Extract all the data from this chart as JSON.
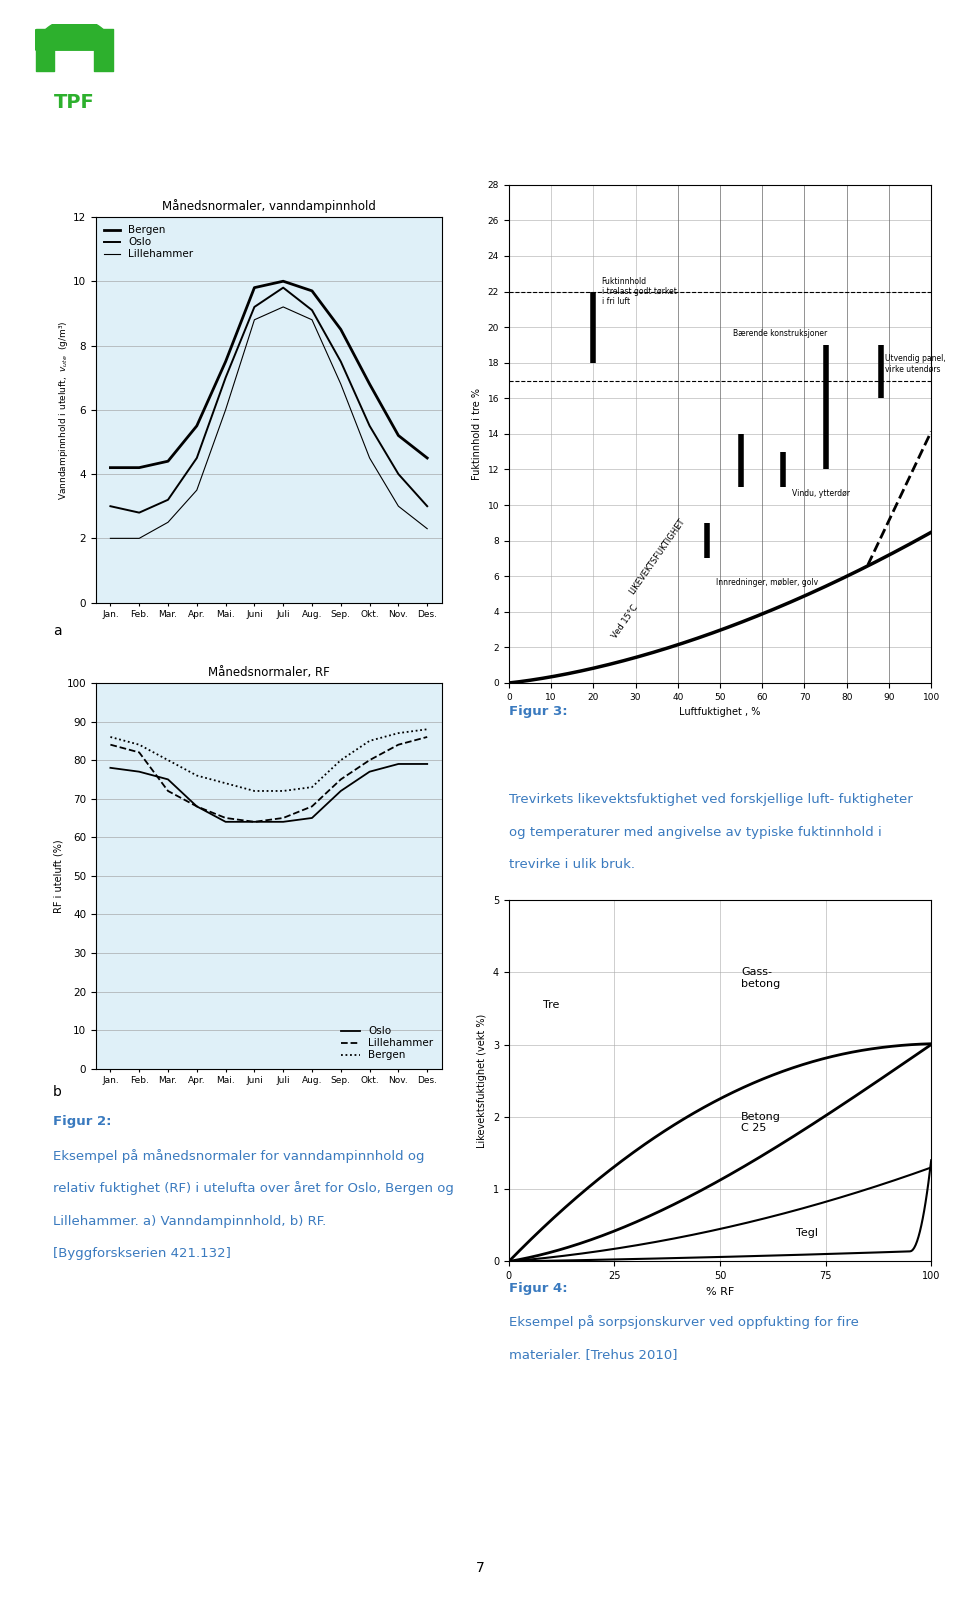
{
  "title_a": "Månedsnormaler, vanndampinnhold",
  "title_b": "Månedsnormaler, RF",
  "ylabel_a": "Vanndampinnhold i uteluft,  vᵤₜᵉ  (g/m³)",
  "ylabel_b": "RF i uteluft (%)",
  "months": [
    "Jan.",
    "Feb.",
    "Mar.",
    "Apr.",
    "Mai.",
    "Juni",
    "Juli",
    "Aug.",
    "Sep.",
    "Okt.",
    "Nov.",
    "Des."
  ],
  "vann_bergen": [
    4.2,
    4.2,
    4.4,
    5.5,
    7.5,
    9.8,
    10.0,
    9.7,
    8.5,
    6.8,
    5.2,
    4.5
  ],
  "vann_oslo": [
    3.0,
    2.8,
    3.2,
    4.5,
    7.0,
    9.2,
    9.8,
    9.1,
    7.5,
    5.5,
    4.0,
    3.0
  ],
  "vann_lillehammer": [
    2.0,
    2.0,
    2.5,
    3.5,
    6.0,
    8.8,
    9.2,
    8.8,
    6.8,
    4.5,
    3.0,
    2.3
  ],
  "rf_bergen": [
    86,
    84,
    80,
    76,
    74,
    72,
    72,
    73,
    80,
    85,
    87,
    88
  ],
  "rf_oslo": [
    84,
    82,
    72,
    68,
    65,
    64,
    65,
    68,
    75,
    80,
    84,
    86
  ],
  "rf_lillehammer": [
    78,
    77,
    75,
    68,
    64,
    64,
    64,
    65,
    72,
    77,
    79,
    79
  ],
  "ylim_a": [
    0,
    12
  ],
  "ylim_b": [
    0,
    100
  ],
  "yticks_a": [
    0,
    2,
    4,
    6,
    8,
    10,
    12
  ],
  "yticks_b": [
    0,
    10,
    20,
    30,
    40,
    50,
    60,
    70,
    80,
    90,
    100
  ],
  "bg_color": "#dff0f8",
  "label_a": "a",
  "label_b": "b",
  "figur2_title": "Figur 2:",
  "figur2_text1": "Eksempel på månedsnormaler for vanndampinnhold og",
  "figur2_text2": "relativ fuktighet (RF) i utelufta over året for Oslo, Bergen og",
  "figur2_text3": "Lillehammer. a) Vanndampinnhold, b) RF.",
  "figur2_text4": "[Byggforskserien 421.132]",
  "figur3_title": "Figur 3:",
  "figur3_text1": "Trevirkets likevektsfuktighet ved forskjellige luft- fuktigheter",
  "figur3_text2": "og temperaturer med angivelse av typiske fuktinnhold i",
  "figur3_text3": "trevirke i ulik bruk.",
  "figur4_title": "Figur 4:",
  "figur4_text1": "Eksempel på sorpsjonskurver ved oppfukting for fire",
  "figur4_text2": "materialer. [Trehus 2010]",
  "text_color_blue": "#3a7abf",
  "page_number": "7",
  "tpf_green": "#2db02d"
}
